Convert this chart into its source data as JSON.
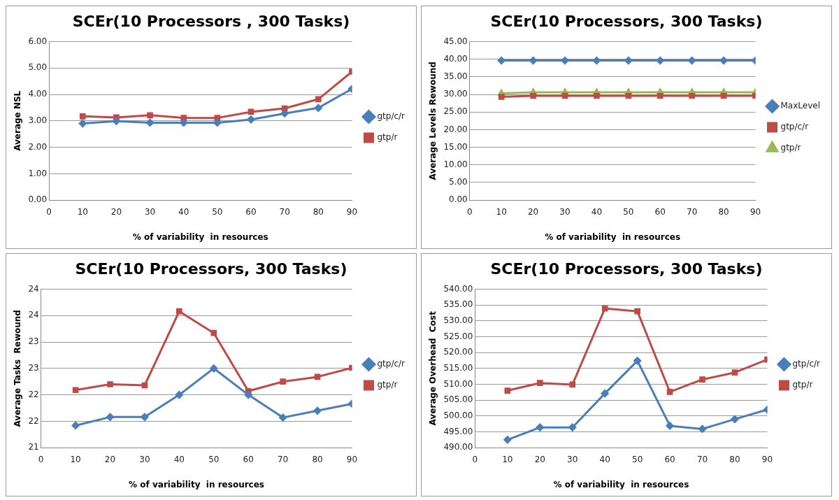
{
  "chart_data": [
    {
      "type": "line",
      "title": "SCEr(10 Processors , 300 Tasks)",
      "xlabel": "% of variability  in resources",
      "ylabel": "Average NSL",
      "x": [
        10,
        20,
        30,
        40,
        50,
        60,
        70,
        80,
        90
      ],
      "xlim": [
        0,
        90
      ],
      "xticks": [
        0,
        10,
        20,
        30,
        40,
        50,
        60,
        70,
        80,
        90
      ],
      "ylim": [
        0,
        6
      ],
      "yticks": [
        {
          "value": 0,
          "label": "0.00"
        },
        {
          "value": 1,
          "label": "1.00"
        },
        {
          "value": 2,
          "label": "2.00"
        },
        {
          "value": 3,
          "label": "3.00"
        },
        {
          "value": 4,
          "label": "4.00"
        },
        {
          "value": 5,
          "label": "5.00"
        },
        {
          "value": 6,
          "label": "6.00"
        }
      ],
      "grid": "y",
      "legend": "right",
      "series": [
        {
          "name": "gtp/c/r",
          "color": "#4a7ebb",
          "marker": "diamond",
          "values": [
            2.9,
            2.99,
            2.93,
            2.93,
            2.93,
            3.05,
            3.28,
            3.49,
            4.21
          ]
        },
        {
          "name": "gtp/r",
          "color": "#be4b48",
          "marker": "square",
          "values": [
            3.17,
            3.13,
            3.21,
            3.11,
            3.11,
            3.34,
            3.47,
            3.82,
            4.86
          ]
        }
      ]
    },
    {
      "type": "line",
      "title": "SCEr(10 Processors, 300 Tasks)",
      "xlabel": "% of variability  in resources",
      "ylabel": "Average Levels Rewound",
      "x": [
        10,
        20,
        30,
        40,
        50,
        60,
        70,
        80,
        90
      ],
      "xlim": [
        0,
        90
      ],
      "xticks": [
        0,
        10,
        20,
        30,
        40,
        50,
        60,
        70,
        80,
        90
      ],
      "ylim": [
        0,
        45
      ],
      "yticks": [
        {
          "value": 0,
          "label": "0.00"
        },
        {
          "value": 5,
          "label": "5.00"
        },
        {
          "value": 10,
          "label": "10.00"
        },
        {
          "value": 15,
          "label": "15.00"
        },
        {
          "value": 20,
          "label": "20.00"
        },
        {
          "value": 25,
          "label": "25.00"
        },
        {
          "value": 30,
          "label": "30.00"
        },
        {
          "value": 35,
          "label": "35.00"
        },
        {
          "value": 40,
          "label": "40.00"
        },
        {
          "value": 45,
          "label": "45.00"
        }
      ],
      "grid": "y",
      "legend": "right",
      "series": [
        {
          "name": "MaxLevel",
          "color": "#4a7ebb",
          "marker": "diamond",
          "values": [
            39.6,
            39.6,
            39.6,
            39.6,
            39.6,
            39.6,
            39.6,
            39.6,
            39.6
          ]
        },
        {
          "name": "gtp/c/r",
          "color": "#be4b48",
          "marker": "square",
          "values": [
            29.3,
            29.6,
            29.6,
            29.6,
            29.6,
            29.6,
            29.6,
            29.6,
            29.6
          ]
        },
        {
          "name": "gtp/r",
          "color": "#98b954",
          "marker": "triangle",
          "values": [
            30.3,
            30.6,
            30.6,
            30.6,
            30.6,
            30.6,
            30.6,
            30.6,
            30.6
          ]
        }
      ]
    },
    {
      "type": "line",
      "title": "SCEr(10 Processors, 300 Tasks)",
      "xlabel": "% of variability  in resources",
      "ylabel": "Average Tasks  Rewound",
      "x": [
        10,
        20,
        30,
        40,
        50,
        60,
        70,
        80,
        90
      ],
      "xlim": [
        0,
        90
      ],
      "xticks": [
        0,
        10,
        20,
        30,
        40,
        50,
        60,
        70,
        80,
        90
      ],
      "ylim": [
        21,
        24
      ],
      "yticks": [
        21,
        {
          "value": 21.5,
          "label": "22"
        },
        22,
        {
          "value": 22.5,
          "label": "23"
        },
        23,
        {
          "value": 23.5,
          "label": "24"
        },
        24
      ],
      "grid": "y",
      "legend": "right",
      "series": [
        {
          "name": "gtp/c/r",
          "color": "#4a7ebb",
          "marker": "diamond",
          "values": [
            21.42,
            21.58,
            21.58,
            22.0,
            22.5,
            22.0,
            21.57,
            21.7,
            21.83
          ]
        },
        {
          "name": "gtp/r",
          "color": "#be4b48",
          "marker": "square",
          "values": [
            22.09,
            22.2,
            22.18,
            23.58,
            23.17,
            22.07,
            22.25,
            22.34,
            22.51
          ]
        }
      ]
    },
    {
      "type": "line",
      "title": "SCEr(10 Processors, 300 Tasks)",
      "xlabel": "% of variability  in resources",
      "ylabel": "Average Overhead  Cost",
      "x": [
        10,
        20,
        30,
        40,
        50,
        60,
        70,
        80,
        90
      ],
      "xlim": [
        0,
        90
      ],
      "xticks": [
        0,
        10,
        20,
        30,
        40,
        50,
        60,
        70,
        80,
        90
      ],
      "ylim": [
        490,
        540
      ],
      "yticks": [
        {
          "value": 490,
          "label": "490.00"
        },
        {
          "value": 495,
          "label": "495.00"
        },
        {
          "value": 500,
          "label": "500.00"
        },
        {
          "value": 505,
          "label": "505.00"
        },
        {
          "value": 510,
          "label": "510.00"
        },
        {
          "value": 515,
          "label": "515.00"
        },
        {
          "value": 520,
          "label": "520.00"
        },
        {
          "value": 525,
          "label": "525.00"
        },
        {
          "value": 530,
          "label": "530.00"
        },
        {
          "value": 535,
          "label": "535.00"
        },
        {
          "value": 540,
          "label": "540.00"
        }
      ],
      "grid": "y",
      "legend": "right",
      "series": [
        {
          "name": "gtp/c/r",
          "color": "#4a7ebb",
          "marker": "diamond",
          "values": [
            492.5,
            496.4,
            496.4,
            507.1,
            517.4,
            496.9,
            495.9,
            499.0,
            502.0
          ]
        },
        {
          "name": "gtp/r",
          "color": "#be4b48",
          "marker": "square",
          "values": [
            508.0,
            510.4,
            509.9,
            533.9,
            533.0,
            507.6,
            511.5,
            513.7,
            517.8
          ]
        }
      ]
    }
  ]
}
